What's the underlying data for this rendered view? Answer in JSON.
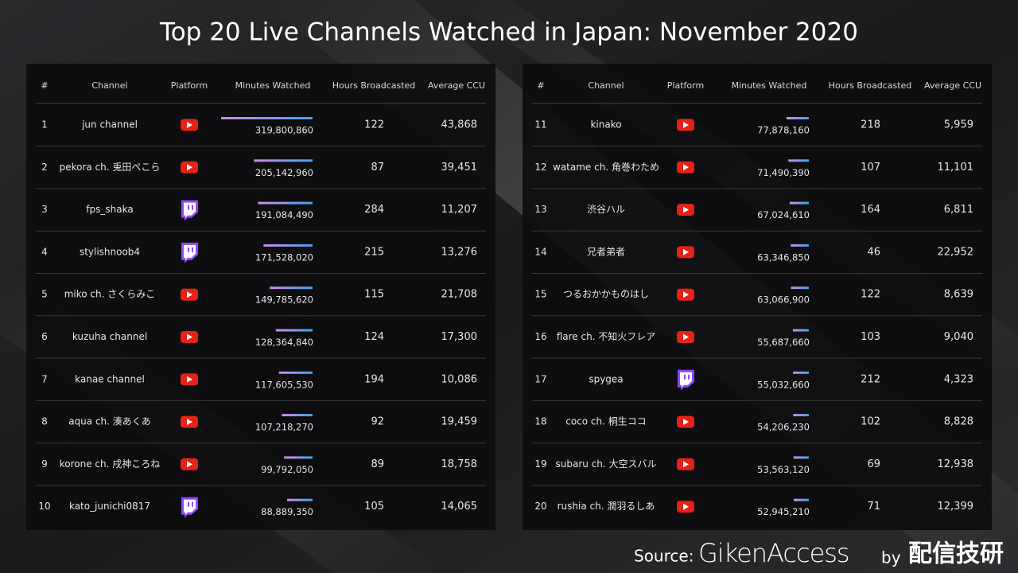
{
  "title": "Top 20 Live Channels Watched in Japan: November 2020",
  "tables": [
    {
      "headers": [
        "#",
        "Channel",
        "Platform",
        "Minutes Watched",
        "Hours Broadcasted",
        "Average CCU"
      ],
      "rows": [
        {
          "rank": 1,
          "channel": "jun channel",
          "platform": "youtube",
          "minutes_watched": {
            "value": 319800860,
            "label": "319,800,860"
          },
          "hours_broadcasted": 122,
          "average_ccu": "43,868"
        },
        {
          "rank": 2,
          "channel": "pekora ch. 兎田ぺこら",
          "platform": "youtube",
          "minutes_watched": {
            "value": 205142960,
            "label": "205,142,960"
          },
          "hours_broadcasted": 87,
          "average_ccu": "39,451"
        },
        {
          "rank": 3,
          "channel": "fps_shaka",
          "platform": "twitch",
          "minutes_watched": {
            "value": 191084490,
            "label": "191,084,490"
          },
          "hours_broadcasted": 284,
          "average_ccu": "11,207"
        },
        {
          "rank": 4,
          "channel": "stylishnoob4",
          "platform": "twitch",
          "minutes_watched": {
            "value": 171528020,
            "label": "171,528,020"
          },
          "hours_broadcasted": 215,
          "average_ccu": "13,276"
        },
        {
          "rank": 5,
          "channel": "miko ch. さくらみこ",
          "platform": "youtube",
          "minutes_watched": {
            "value": 149785620,
            "label": "149,785,620"
          },
          "hours_broadcasted": 115,
          "average_ccu": "21,708"
        },
        {
          "rank": 6,
          "channel": "kuzuha channel",
          "platform": "youtube",
          "minutes_watched": {
            "value": 128364840,
            "label": "128,364,840"
          },
          "hours_broadcasted": 124,
          "average_ccu": "17,300"
        },
        {
          "rank": 7,
          "channel": "kanae channel",
          "platform": "youtube",
          "minutes_watched": {
            "value": 117605530,
            "label": "117,605,530"
          },
          "hours_broadcasted": 194,
          "average_ccu": "10,086"
        },
        {
          "rank": 8,
          "channel": "aqua ch. 湊あくあ",
          "platform": "youtube",
          "minutes_watched": {
            "value": 107218270,
            "label": "107,218,270"
          },
          "hours_broadcasted": 92,
          "average_ccu": "19,459"
        },
        {
          "rank": 9,
          "channel": "korone ch. 戌神ころね",
          "platform": "youtube",
          "minutes_watched": {
            "value": 99792050,
            "label": "99,792,050"
          },
          "hours_broadcasted": 89,
          "average_ccu": "18,758"
        },
        {
          "rank": 10,
          "channel": "kato_junichi0817",
          "platform": "twitch",
          "minutes_watched": {
            "value": 88889350,
            "label": "88,889,350"
          },
          "hours_broadcasted": 105,
          "average_ccu": "14,065"
        }
      ]
    },
    {
      "headers": [
        "#",
        "Channel",
        "Platform",
        "Minutes Watched",
        "Hours Broadcasted",
        "Average CCU"
      ],
      "rows": [
        {
          "rank": 11,
          "channel": "kinako",
          "platform": "youtube",
          "minutes_watched": {
            "value": 77878160,
            "label": "77,878,160"
          },
          "hours_broadcasted": 218,
          "average_ccu": "5,959"
        },
        {
          "rank": 12,
          "channel": "watame ch. 角巻わため",
          "platform": "youtube",
          "minutes_watched": {
            "value": 71490390,
            "label": "71,490,390"
          },
          "hours_broadcasted": 107,
          "average_ccu": "11,101"
        },
        {
          "rank": 13,
          "channel": "渋谷ハル",
          "platform": "youtube",
          "minutes_watched": {
            "value": 67024610,
            "label": "67,024,610"
          },
          "hours_broadcasted": 164,
          "average_ccu": "6,811"
        },
        {
          "rank": 14,
          "channel": "兄者弟者",
          "platform": "youtube",
          "minutes_watched": {
            "value": 63346850,
            "label": "63,346,850"
          },
          "hours_broadcasted": 46,
          "average_ccu": "22,952"
        },
        {
          "rank": 15,
          "channel": "つるおかかものはし",
          "platform": "youtube",
          "minutes_watched": {
            "value": 63066900,
            "label": "63,066,900"
          },
          "hours_broadcasted": 122,
          "average_ccu": "8,639"
        },
        {
          "rank": 16,
          "channel": "flare ch. 不知火フレア",
          "platform": "youtube",
          "minutes_watched": {
            "value": 55687660,
            "label": "55,687,660"
          },
          "hours_broadcasted": 103,
          "average_ccu": "9,040"
        },
        {
          "rank": 17,
          "channel": "spygea",
          "platform": "twitch",
          "minutes_watched": {
            "value": 55032660,
            "label": "55,032,660"
          },
          "hours_broadcasted": 212,
          "average_ccu": "4,323"
        },
        {
          "rank": 18,
          "channel": "coco ch. 桐生ココ",
          "platform": "youtube",
          "minutes_watched": {
            "value": 54206230,
            "label": "54,206,230"
          },
          "hours_broadcasted": 102,
          "average_ccu": "8,828"
        },
        {
          "rank": 19,
          "channel": "subaru ch. 大空スバル",
          "platform": "youtube",
          "minutes_watched": {
            "value": 53563120,
            "label": "53,563,120"
          },
          "hours_broadcasted": 69,
          "average_ccu": "12,938"
        },
        {
          "rank": 20,
          "channel": "rushia ch. 潤羽るしあ",
          "platform": "youtube",
          "minutes_watched": {
            "value": 52945210,
            "label": "52,945,210"
          },
          "hours_broadcasted": 71,
          "average_ccu": "12,399"
        }
      ]
    }
  ],
  "footer": {
    "source_label": "Source:",
    "source": "GikenAccess",
    "by": "by",
    "publisher": "配信技研"
  }
}
